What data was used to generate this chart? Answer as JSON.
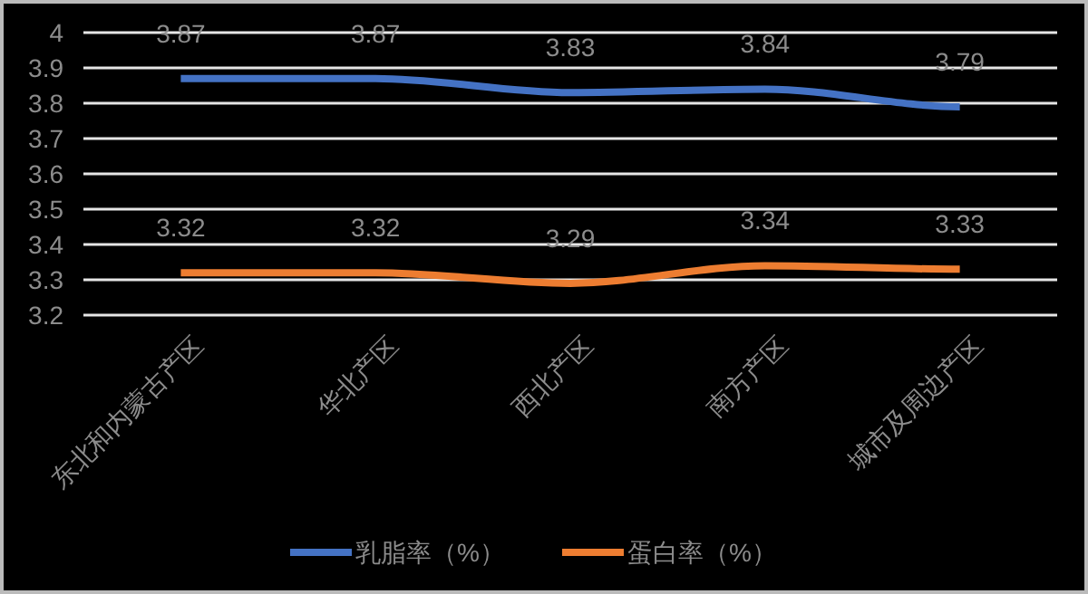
{
  "chart_data": {
    "type": "line",
    "categories": [
      "东北和内蒙古产区",
      "华北产区",
      "西北产区",
      "南方产区",
      "城市及周边产区"
    ],
    "series": [
      {
        "name": "乳脂率（%）",
        "color": "#4472c4",
        "values": [
          3.87,
          3.87,
          3.83,
          3.84,
          3.79
        ]
      },
      {
        "name": "蛋白率（%）",
        "color": "#ed7d31",
        "values": [
          3.32,
          3.32,
          3.29,
          3.34,
          3.33
        ]
      }
    ],
    "ylim": [
      3.2,
      4
    ],
    "yticks": [
      3.2,
      3.3,
      3.4,
      3.5,
      3.6,
      3.7,
      3.8,
      3.9,
      4
    ],
    "grid": "y",
    "legend": "bottom",
    "data_labels": true
  }
}
